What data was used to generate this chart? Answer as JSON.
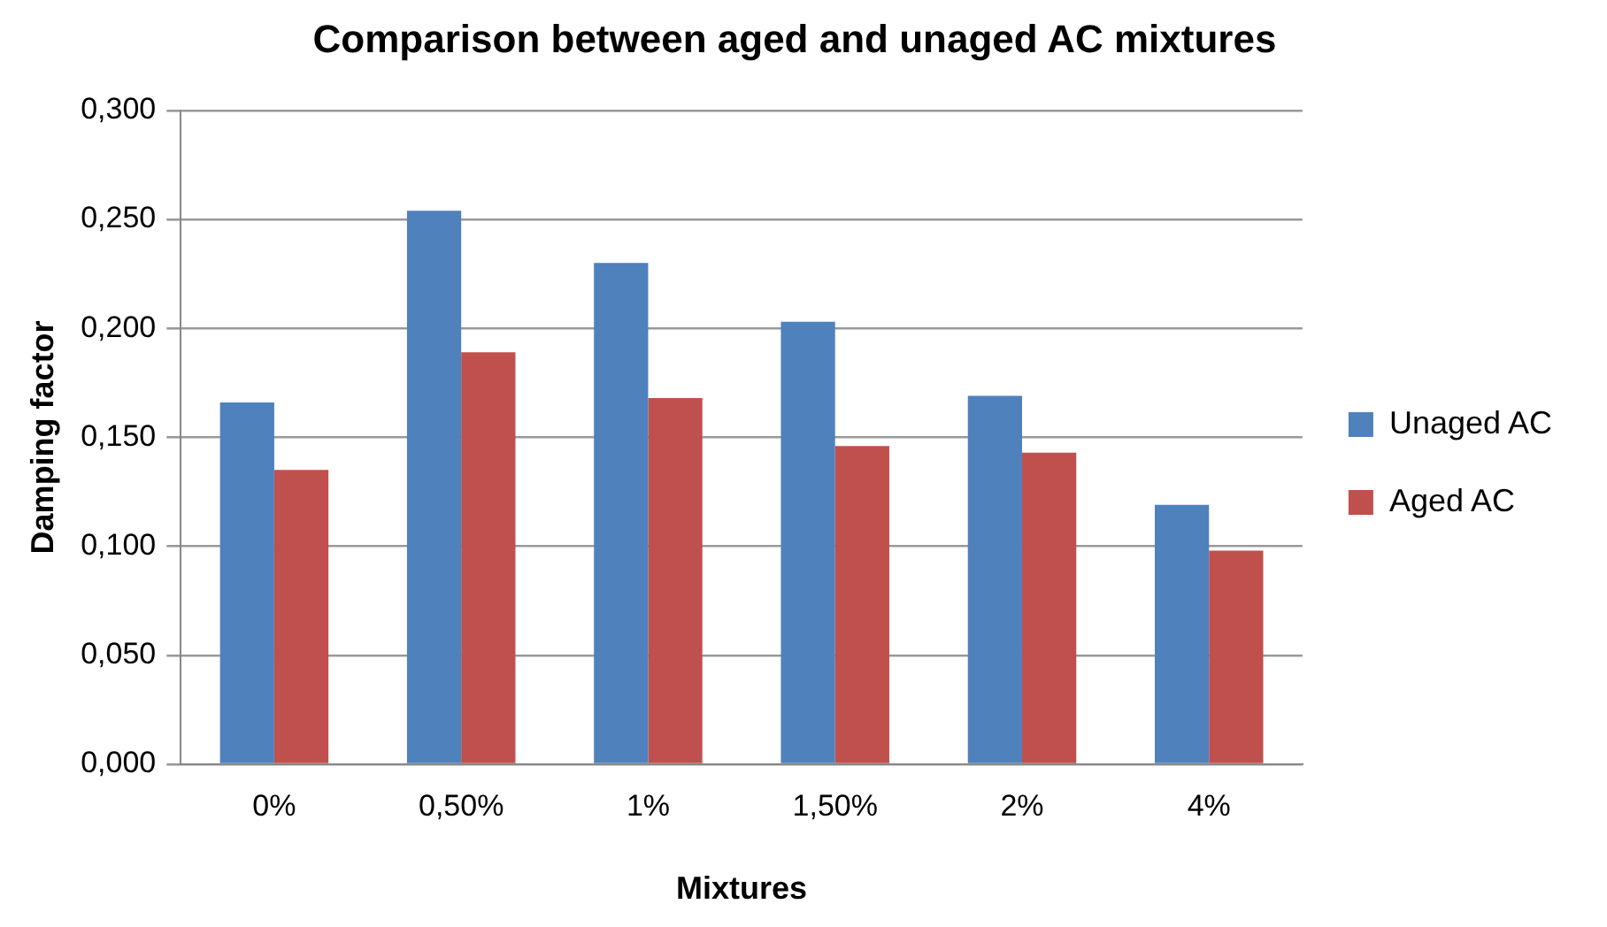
{
  "chart_data": {
    "type": "bar",
    "title": "Comparison between aged and unaged AC mixtures",
    "xlabel": "Mixtures",
    "ylabel": "Damping factor",
    "categories": [
      "0%",
      "0,50%",
      "1%",
      "1,50%",
      "2%",
      "4%"
    ],
    "series": [
      {
        "name": "Unaged AC",
        "color": "#4f81bd",
        "values": [
          0.166,
          0.254,
          0.23,
          0.203,
          0.169,
          0.119
        ]
      },
      {
        "name": "Aged AC",
        "color": "#c0504d",
        "values": [
          0.135,
          0.189,
          0.168,
          0.146,
          0.143,
          0.098
        ]
      }
    ],
    "ylim": [
      0,
      0.3
    ],
    "yticks": [
      {
        "value": 0,
        "label": "0,000"
      },
      {
        "value": 0.05,
        "label": "0,050"
      },
      {
        "value": 0.1,
        "label": "0,100"
      },
      {
        "value": 0.15,
        "label": "0,150"
      },
      {
        "value": 0.2,
        "label": "0,200"
      },
      {
        "value": 0.25,
        "label": "0,250"
      },
      {
        "value": 0.3,
        "label": "0,300"
      }
    ],
    "grid": "y",
    "legend": "right"
  }
}
